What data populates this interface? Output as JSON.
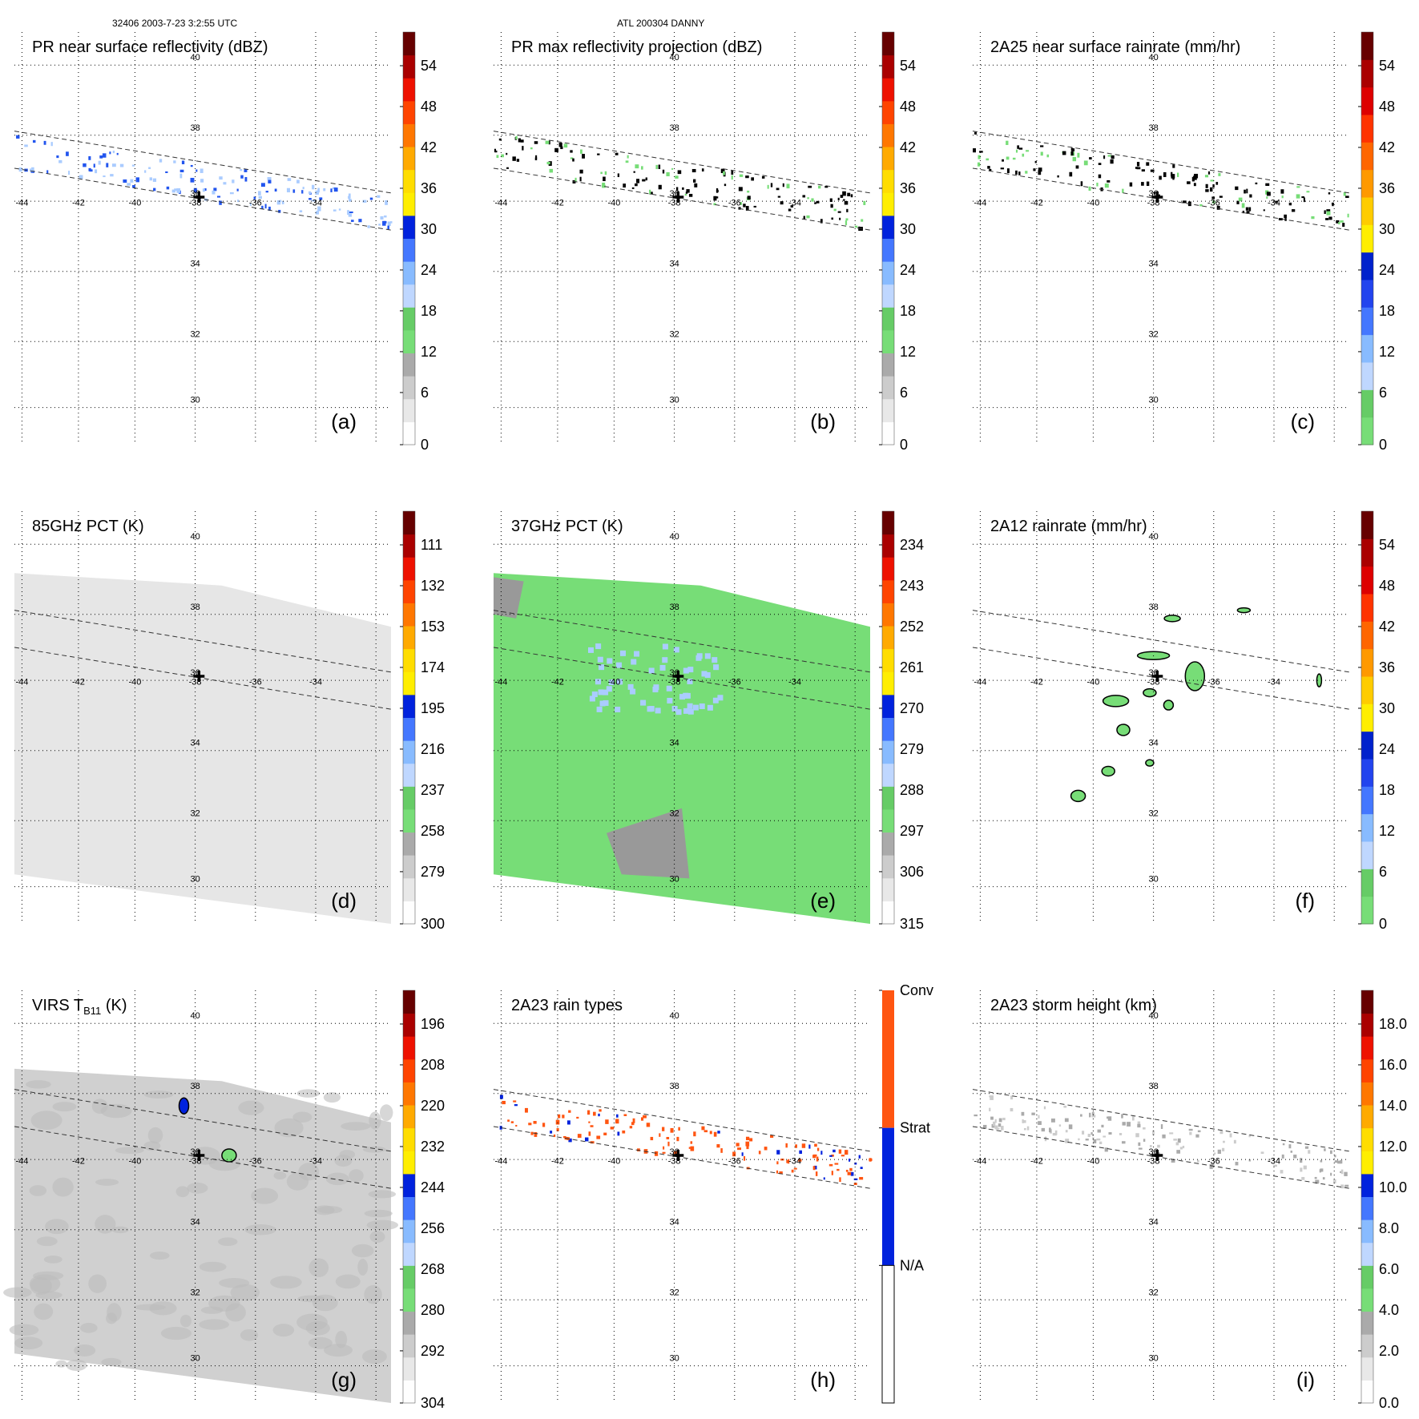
{
  "header": {
    "left": "32406 2003-7-23 3:2:55 UTC",
    "center": "ATL 200304 DANNY"
  },
  "map_grid": {
    "longitudes": [
      "-44",
      "-42",
      "-40",
      "-38",
      "-36",
      "-34"
    ],
    "latitudes": [
      "40",
      "38",
      "36",
      "34",
      "32",
      "30"
    ]
  },
  "colors": {
    "green": "#77dd77",
    "light_blue": "#aaccff",
    "blue": "#2255ee",
    "dark_blue": "#0000cc",
    "yellow": "#ffee00",
    "orange": "#ff8800",
    "red": "#ee2200",
    "dark_red": "#660000",
    "gray": "#999999",
    "conv": "#ff5511",
    "strat": "#0022dd"
  },
  "panels": [
    {
      "id": "a",
      "title": "PR near surface reflectivity (dBZ)",
      "label": "(a)",
      "colorbar_scheme": "gray-green-blue-warm",
      "colorbar_ticks": [
        "54",
        "48",
        "42",
        "36",
        "30",
        "24",
        "18",
        "12",
        "6",
        "0"
      ],
      "content": "pr_swath"
    },
    {
      "id": "b",
      "title": "PR max reflectivity projection (dBZ)",
      "label": "(b)",
      "colorbar_scheme": "gray-green-blue-warm",
      "colorbar_ticks": [
        "54",
        "48",
        "42",
        "36",
        "30",
        "24",
        "18",
        "12",
        "6",
        "0"
      ],
      "content": "pr_swath"
    },
    {
      "id": "c",
      "title": "2A25 near surface rainrate (mm/hr)",
      "label": "(c)",
      "colorbar_scheme": "green-blue-warm",
      "colorbar_ticks": [
        "54",
        "48",
        "42",
        "36",
        "30",
        "24",
        "18",
        "12",
        "6",
        "0"
      ],
      "content": "pr_swath"
    },
    {
      "id": "d",
      "title": "85GHz PCT (K)",
      "label": "(d)",
      "colorbar_scheme": "gray-green-blue-warm",
      "colorbar_ticks": [
        "111",
        "132",
        "153",
        "174",
        "195",
        "216",
        "237",
        "258",
        "279",
        "300"
      ],
      "content": "tmi_gray"
    },
    {
      "id": "e",
      "title": "37GHz PCT (K)",
      "label": "(e)",
      "colorbar_scheme": "gray-green-blue-warm",
      "colorbar_ticks": [
        "234",
        "243",
        "252",
        "261",
        "270",
        "279",
        "288",
        "297",
        "306",
        "315"
      ],
      "content": "tmi_green"
    },
    {
      "id": "f",
      "title": "2A12 rainrate (mm/hr)",
      "label": "(f)",
      "colorbar_scheme": "green-blue-warm",
      "colorbar_ticks": [
        "54",
        "48",
        "42",
        "36",
        "30",
        "24",
        "18",
        "12",
        "6",
        "0"
      ],
      "content": "tmi_rain"
    },
    {
      "id": "g",
      "title_main": "VIRS T",
      "title_sub": "B11",
      "title_unit": " (K)",
      "label": "(g)",
      "colorbar_scheme": "gray-green-blue-warm",
      "colorbar_ticks": [
        "196",
        "208",
        "220",
        "232",
        "244",
        "256",
        "268",
        "280",
        "292",
        "304"
      ],
      "content": "virs"
    },
    {
      "id": "h",
      "title": "2A23 rain types",
      "label": "(h)",
      "colorbar_scheme": "raintype",
      "colorbar_ticks": [
        "Conv",
        "Strat",
        "N/A"
      ],
      "content": "pr_types"
    },
    {
      "id": "i",
      "title": "2A23 storm height (km)",
      "label": "(i)",
      "colorbar_scheme": "gray-green-blue-warm",
      "colorbar_ticks": [
        "18.0",
        "16.0",
        "14.0",
        "12.0",
        "10.0",
        "8.0",
        "6.0",
        "4.0",
        "2.0",
        "0.0"
      ],
      "content": "pr_height"
    }
  ]
}
